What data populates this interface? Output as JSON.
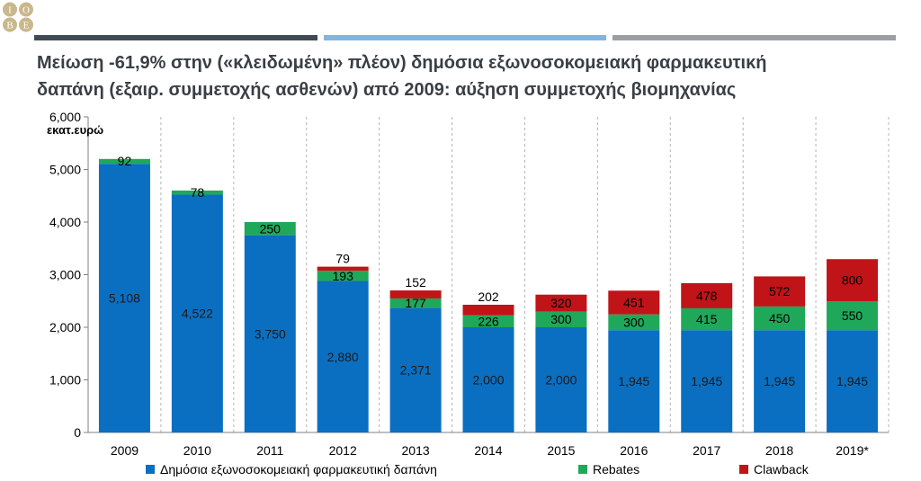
{
  "logo": {
    "letters": [
      "Ι",
      "Ο",
      "Β",
      "Ε"
    ]
  },
  "title": {
    "line1": "Μείωση -61,9% στην («κλειδωμένη» πλέον) δημόσια εξωνοσοκομειακή φαρμακευτική",
    "line2": "δαπάνη (εξαιρ. συμμετοχής ασθενών) από 2009: αύξηση συμμετοχής βιομηχανίας"
  },
  "colors": {
    "public": "#0b6fc1",
    "rebates": "#20a85a",
    "clawback": "#c01418",
    "strip_dark": "#3f4a55",
    "strip_light": "#7fb6e0",
    "strip_grey": "#9b9fa3"
  },
  "chart_data": {
    "type": "bar",
    "stacked": true,
    "unit_label": "εκατ.ευρώ",
    "categories": [
      "2009",
      "2010",
      "2011",
      "2012",
      "2013",
      "2014",
      "2015",
      "2016",
      "2017",
      "2018",
      "2019*"
    ],
    "series": [
      {
        "name": "Δημόσια εξωνοσοκομειακή φαρμακευτική δαπάνη",
        "color": "#0b6fc1",
        "values": [
          5108,
          4522,
          3750,
          2880,
          2371,
          2000,
          2000,
          1945,
          1945,
          1945,
          1945
        ]
      },
      {
        "name": "Rebates",
        "color": "#20a85a",
        "values": [
          92,
          78,
          250,
          193,
          177,
          226,
          300,
          300,
          415,
          450,
          550
        ]
      },
      {
        "name": "Clawback",
        "color": "#c01418",
        "values": [
          0,
          0,
          0,
          79,
          152,
          202,
          320,
          451,
          478,
          572,
          800
        ]
      }
    ],
    "labels": {
      "public": [
        "5,108",
        "4,522",
        "3,750",
        "2,880",
        "2,371",
        "2,000",
        "2,000",
        "1,945",
        "1,945",
        "1,945",
        "1,945"
      ],
      "rebates": [
        "92",
        "78",
        "250",
        "193",
        "177",
        "226",
        "300",
        "300",
        "415",
        "450",
        "550"
      ],
      "clawback": [
        "",
        "",
        "",
        "79",
        "152",
        "202",
        "320",
        "451",
        "478",
        "572",
        "800"
      ]
    },
    "ylim": [
      0,
      6000
    ],
    "yticks": [
      0,
      1000,
      2000,
      3000,
      4000,
      5000,
      6000
    ],
    "ytick_labels": [
      "0",
      "1,000",
      "2,000",
      "3,000",
      "4,000",
      "5,000",
      "6,000"
    ],
    "grid": "vertical dashed separators",
    "legend_position": "bottom"
  }
}
